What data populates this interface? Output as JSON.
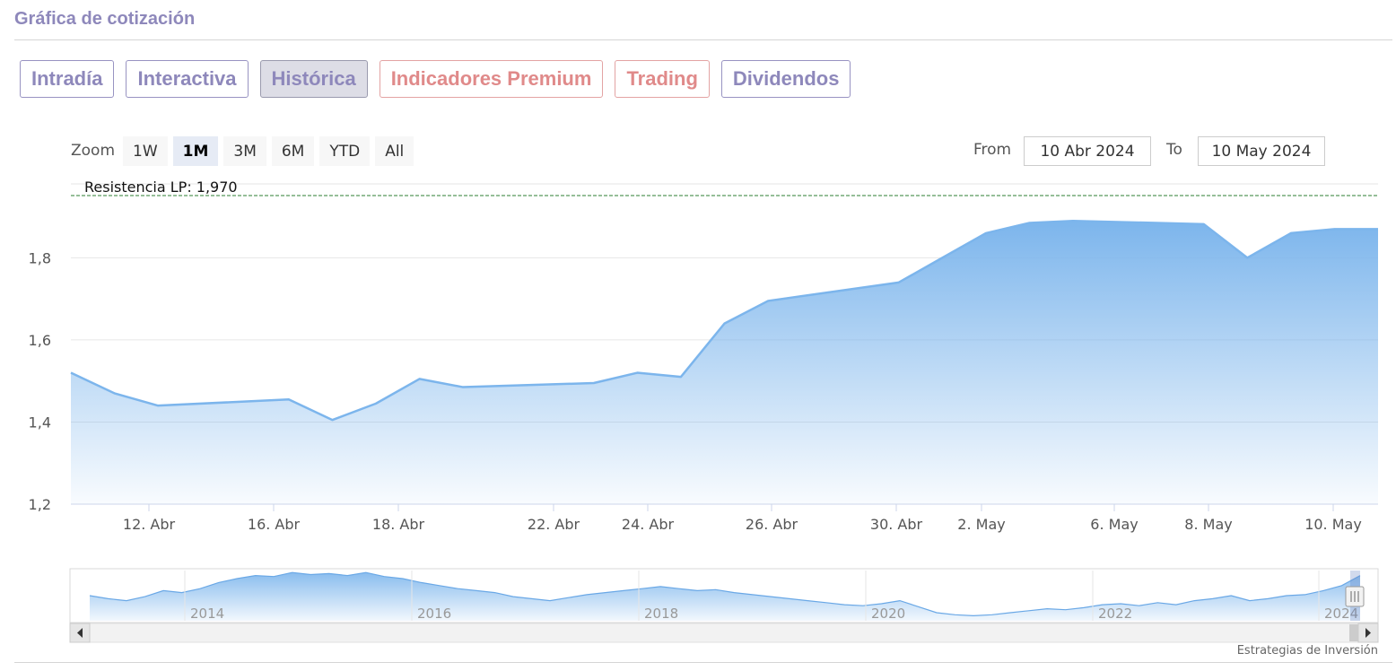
{
  "header": {
    "title": "Gráfica de cotización"
  },
  "tabs": [
    {
      "label": "Intradía",
      "style": "normal"
    },
    {
      "label": "Interactiva",
      "style": "normal"
    },
    {
      "label": "Histórica",
      "style": "active"
    },
    {
      "label": "Indicadores Premium",
      "style": "premium"
    },
    {
      "label": "Trading",
      "style": "premium"
    },
    {
      "label": "Dividendos",
      "style": "normal"
    }
  ],
  "zoom": {
    "label": "Zoom",
    "buttons": [
      "1W",
      "1M",
      "3M",
      "6M",
      "YTD",
      "All"
    ],
    "selected": "1M"
  },
  "range": {
    "from_label": "From",
    "from_value": "10 Abr 2024",
    "to_label": "To",
    "to_value": "10 May 2024"
  },
  "credit": "Estrategias de Inversión",
  "colors": {
    "accent": "#8e88bb",
    "premium": "#e08a8a",
    "series_line": "#7cb5ec",
    "resistance": "#2e7d32"
  },
  "chart_data": {
    "type": "area",
    "xlabel": "",
    "ylabel": "",
    "yticks": [
      "1,2",
      "1,4",
      "1,6",
      "1,8"
    ],
    "ylim": [
      1.2,
      1.98
    ],
    "xticks": [
      "12. Abr",
      "16. Abr",
      "18. Abr",
      "22. Abr",
      "24. Abr",
      "26. Abr",
      "30. Abr",
      "2. May",
      "6. May",
      "8. May",
      "10. May"
    ],
    "grid": true,
    "legend": "none",
    "resistance": {
      "label": "Resistencia LP: 1,970",
      "value": 1.97
    },
    "x": [
      "2024-04-10",
      "2024-04-11",
      "2024-04-12",
      "2024-04-15",
      "2024-04-16",
      "2024-04-17",
      "2024-04-18",
      "2024-04-19",
      "2024-04-22",
      "2024-04-23",
      "2024-04-24",
      "2024-04-25",
      "2024-04-26",
      "2024-04-29",
      "2024-04-30",
      "2024-05-01",
      "2024-05-02",
      "2024-05-03",
      "2024-05-06",
      "2024-05-07",
      "2024-05-08",
      "2024-05-09",
      "2024-05-10"
    ],
    "values": [
      1.52,
      1.47,
      1.44,
      1.455,
      1.405,
      1.445,
      1.505,
      1.485,
      1.495,
      1.52,
      1.51,
      1.64,
      1.695,
      1.74,
      1.8,
      1.86,
      1.885,
      1.89,
      1.882,
      1.8,
      1.86,
      1.87,
      1.87
    ],
    "navigator": {
      "xticks": [
        "2014",
        "2016",
        "2018",
        "2020",
        "2022",
        "2024"
      ],
      "values": [
        1.35,
        1.32,
        1.3,
        1.34,
        1.4,
        1.38,
        1.42,
        1.48,
        1.52,
        1.55,
        1.54,
        1.58,
        1.56,
        1.57,
        1.55,
        1.58,
        1.54,
        1.52,
        1.48,
        1.45,
        1.42,
        1.4,
        1.38,
        1.34,
        1.32,
        1.3,
        1.33,
        1.36,
        1.38,
        1.4,
        1.42,
        1.44,
        1.42,
        1.4,
        1.41,
        1.38,
        1.36,
        1.34,
        1.32,
        1.3,
        1.28,
        1.26,
        1.25,
        1.27,
        1.3,
        1.24,
        1.18,
        1.16,
        1.15,
        1.16,
        1.18,
        1.2,
        1.22,
        1.21,
        1.23,
        1.26,
        1.27,
        1.25,
        1.28,
        1.26,
        1.3,
        1.32,
        1.35,
        1.3,
        1.32,
        1.35,
        1.36,
        1.4,
        1.45,
        1.55
      ]
    }
  }
}
